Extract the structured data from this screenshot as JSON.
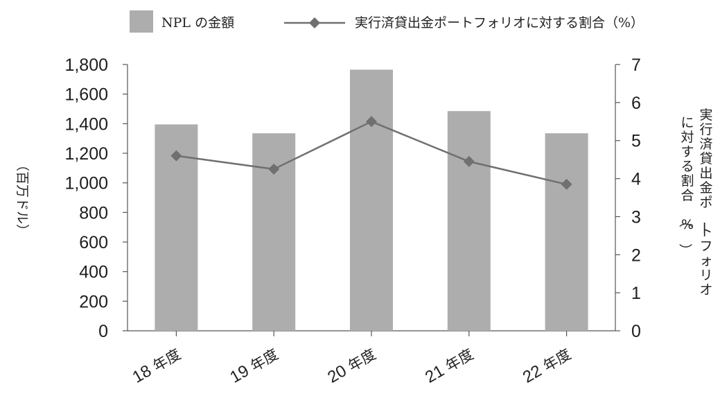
{
  "chart_data": {
    "type": "bar",
    "categories": [
      "18 年度",
      "19 年度",
      "20 年度",
      "21 年度",
      "22 年度"
    ],
    "series": [
      {
        "name": "NPL の金額",
        "kind": "bar",
        "axis": "left",
        "color": "#adadad",
        "values": [
          1395,
          1335,
          1765,
          1485,
          1335
        ]
      },
      {
        "name": "実行済貸出金ポートフォリオに対する割合（%）",
        "kind": "line",
        "axis": "right",
        "color": "#707070",
        "values": [
          4.6,
          4.25,
          5.5,
          4.45,
          3.85
        ]
      }
    ],
    "y_left": {
      "label": "（百万ドル）",
      "ylim": [
        0,
        1800
      ],
      "ticks": [
        "0",
        "200",
        "400",
        "600",
        "800",
        "1,000",
        "1,200",
        "1,400",
        "1,600",
        "1,800"
      ]
    },
    "y_right": {
      "label_line1": "実行済貸出金ポートフォリオ",
      "label_line2": "に対する割合（%）",
      "ylim": [
        0,
        7
      ],
      "ticks": [
        "0",
        "1",
        "2",
        "3",
        "4",
        "5",
        "6",
        "7"
      ]
    },
    "legend_position": "top",
    "grid": false
  }
}
